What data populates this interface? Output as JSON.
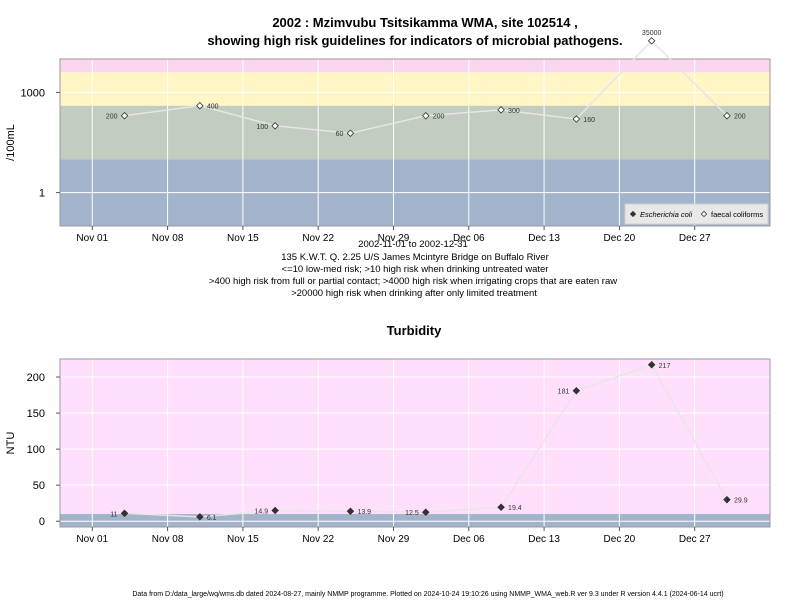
{
  "chart_data": [
    {
      "type": "line",
      "title_line1": "2002 : Mzimvubu Tsitsikamma WMA, site 102514 ,",
      "title_line2": "showing high risk guidelines for indicators of microbial pathogens.",
      "ylabel": "/100mL",
      "yscale": "log",
      "ylim": [
        0.1,
        10000
      ],
      "yticks": [
        {
          "value": 1,
          "label": "1"
        },
        {
          "value": 1000,
          "label": "1000"
        }
      ],
      "xlim": [
        "2002-10-29",
        "2003-01-03"
      ],
      "xticks": [
        {
          "date": "2002-11-01",
          "label": "Nov 01"
        },
        {
          "date": "2002-11-08",
          "label": "Nov 08"
        },
        {
          "date": "2002-11-15",
          "label": "Nov 15"
        },
        {
          "date": "2002-11-22",
          "label": "Nov 22"
        },
        {
          "date": "2002-11-29",
          "label": "Nov 29"
        },
        {
          "date": "2002-12-06",
          "label": "Dec 06"
        },
        {
          "date": "2002-12-13",
          "label": "Dec 13"
        },
        {
          "date": "2002-12-20",
          "label": "Dec 20"
        },
        {
          "date": "2002-12-27",
          "label": "Dec 27"
        }
      ],
      "bands": [
        {
          "from": 0.1,
          "to": 10,
          "color": "#a3b3cc"
        },
        {
          "from": 10,
          "to": 400,
          "color": "#c3ccc0"
        },
        {
          "from": 400,
          "to": 4000,
          "color": "#fff5c5"
        },
        {
          "from": 4000,
          "to": 20000,
          "color": "#fbd6f0"
        },
        {
          "from": 20000,
          "to": 40000,
          "color": "#ffb8c2"
        }
      ],
      "grid": true,
      "series": [
        {
          "name": "faecal coliforms",
          "marker": "open-diamond",
          "points": [
            {
              "x": "2002-11-04",
              "y": 200,
              "label": "200"
            },
            {
              "x": "2002-11-11",
              "y": 400,
              "label": "400"
            },
            {
              "x": "2002-11-18",
              "y": 100,
              "label": "100"
            },
            {
              "x": "2002-11-25",
              "y": 60,
              "label": "60"
            },
            {
              "x": "2002-12-02",
              "y": 200,
              "label": "200"
            },
            {
              "x": "2002-12-09",
              "y": 300,
              "label": "300"
            },
            {
              "x": "2002-12-16",
              "y": 160,
              "label": "160"
            },
            {
              "x": "2002-12-23",
              "y": 35000,
              "label": "35000"
            },
            {
              "x": "2002-12-30",
              "y": 200,
              "label": "200"
            }
          ]
        }
      ],
      "legend": {
        "placement": "bottom-right",
        "entries": [
          {
            "symbol": "filled-diamond",
            "label": "Escherichia coli",
            "italic": true
          },
          {
            "symbol": "open-diamond",
            "label": "faecal coliforms",
            "italic": false
          }
        ]
      },
      "subtitle_lines": [
        "2002-11-01 to 2002-12-31",
        "135 K.W.T. Q. 2.25 U/S James Mcintyre Bridge on Buffalo River",
        "<=10 low-med risk; >10 high risk when drinking untreated water",
        ">400 high risk from full or partial contact; >4000 high risk when irrigating crops that are eaten raw",
        ">20000 high risk when drinking after only limited treatment"
      ]
    },
    {
      "type": "line",
      "title": "Turbidity",
      "ylabel": "NTU",
      "yscale": "linear",
      "ylim": [
        -8,
        225
      ],
      "yticks": [
        {
          "value": 0,
          "label": "0"
        },
        {
          "value": 50,
          "label": "50"
        },
        {
          "value": 100,
          "label": "100"
        },
        {
          "value": 150,
          "label": "150"
        },
        {
          "value": 200,
          "label": "200"
        }
      ],
      "xlim": [
        "2002-10-29",
        "2003-01-03"
      ],
      "xticks": [
        {
          "date": "2002-11-01",
          "label": "Nov 01"
        },
        {
          "date": "2002-11-08",
          "label": "Nov 08"
        },
        {
          "date": "2002-11-15",
          "label": "Nov 15"
        },
        {
          "date": "2002-11-22",
          "label": "Nov 22"
        },
        {
          "date": "2002-11-29",
          "label": "Nov 29"
        },
        {
          "date": "2002-12-06",
          "label": "Dec 06"
        },
        {
          "date": "2002-12-13",
          "label": "Dec 13"
        },
        {
          "date": "2002-12-20",
          "label": "Dec 20"
        },
        {
          "date": "2002-12-27",
          "label": "Dec 27"
        }
      ],
      "bands": [
        {
          "from": -8,
          "to": 10,
          "color": "#a3b3cc"
        },
        {
          "from": 10,
          "to": 225,
          "color": "#ffdffb"
        }
      ],
      "grid": true,
      "series": [
        {
          "marker": "filled-diamond",
          "points": [
            {
              "x": "2002-11-04",
              "y": 11,
              "label": "11"
            },
            {
              "x": "2002-11-11",
              "y": 6.1,
              "label": "6.1"
            },
            {
              "x": "2002-11-18",
              "y": 14.9,
              "label": "14.9"
            },
            {
              "x": "2002-11-25",
              "y": 13.9,
              "label": "13.9"
            },
            {
              "x": "2002-12-02",
              "y": 12.5,
              "label": "12.5"
            },
            {
              "x": "2002-12-09",
              "y": 19.4,
              "label": "19.4"
            },
            {
              "x": "2002-12-16",
              "y": 181,
              "label": "181"
            },
            {
              "x": "2002-12-23",
              "y": 217,
              "label": "217"
            },
            {
              "x": "2002-12-30",
              "y": 29.9,
              "label": "29.9"
            }
          ]
        }
      ]
    }
  ],
  "footer": "Data from D:/data_large/wq/wms.db dated 2024-08-27, mainly NMMP programme. Plotted on 2024-10-24 19:10:26 using NMMP_WMA_web.R ver 9.3 under R version 4.4.1 (2024-06-14 ucrt)"
}
